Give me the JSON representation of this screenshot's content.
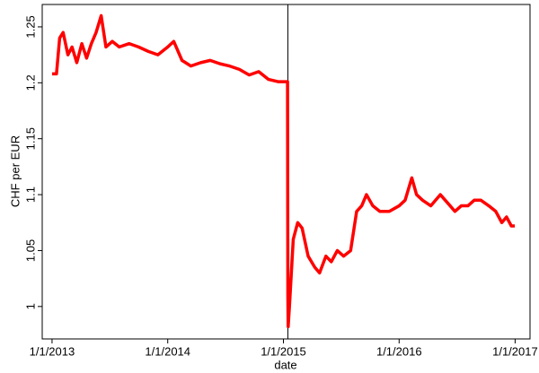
{
  "chart_data": {
    "type": "line",
    "y_label": "CHF per EUR",
    "x_label": "date",
    "x": [
      "2013-01-01",
      "2013-01-15",
      "2013-01-25",
      "2013-02-05",
      "2013-02-20",
      "2013-03-05",
      "2013-03-20",
      "2013-04-05",
      "2013-04-20",
      "2013-05-05",
      "2013-05-20",
      "2013-06-05",
      "2013-06-20",
      "2013-07-10",
      "2013-08-01",
      "2013-09-01",
      "2013-10-01",
      "2013-11-01",
      "2013-12-01",
      "2014-01-01",
      "2014-01-20",
      "2014-02-15",
      "2014-03-15",
      "2014-04-15",
      "2014-05-15",
      "2014-06-15",
      "2014-07-15",
      "2014-08-15",
      "2014-09-15",
      "2014-10-15",
      "2014-11-15",
      "2014-12-15",
      "2015-01-14",
      "2015-01-15",
      "2015-01-16",
      "2015-01-20",
      "2015-02-01",
      "2015-02-15",
      "2015-03-01",
      "2015-03-20",
      "2015-04-10",
      "2015-04-25",
      "2015-05-15",
      "2015-06-01",
      "2015-06-20",
      "2015-07-10",
      "2015-08-01",
      "2015-08-20",
      "2015-09-05",
      "2015-09-20",
      "2015-10-10",
      "2015-11-01",
      "2015-12-01",
      "2016-01-01",
      "2016-01-20",
      "2016-02-10",
      "2016-02-25",
      "2016-03-15",
      "2016-04-10",
      "2016-05-10",
      "2016-06-10",
      "2016-06-25",
      "2016-07-15",
      "2016-08-05",
      "2016-08-25",
      "2016-09-15",
      "2016-10-10",
      "2016-11-01",
      "2016-11-20",
      "2016-12-05",
      "2016-12-20",
      "2016-12-31"
    ],
    "series": [
      {
        "color": "#ff0000",
        "values": [
          1.208,
          1.208,
          1.24,
          1.245,
          1.225,
          1.232,
          1.218,
          1.235,
          1.222,
          1.235,
          1.245,
          1.26,
          1.232,
          1.237,
          1.232,
          1.235,
          1.232,
          1.228,
          1.225,
          1.232,
          1.237,
          1.22,
          1.215,
          1.218,
          1.22,
          1.217,
          1.215,
          1.212,
          1.207,
          1.21,
          1.203,
          1.201,
          1.201,
          1.01,
          0.982,
          1.0,
          1.06,
          1.075,
          1.07,
          1.045,
          1.035,
          1.03,
          1.045,
          1.04,
          1.05,
          1.045,
          1.05,
          1.085,
          1.09,
          1.1,
          1.09,
          1.085,
          1.085,
          1.09,
          1.095,
          1.115,
          1.1,
          1.095,
          1.09,
          1.1,
          1.09,
          1.085,
          1.09,
          1.09,
          1.095,
          1.095,
          1.09,
          1.085,
          1.075,
          1.08,
          1.072,
          1.072
        ]
      }
    ],
    "vline": "2015-01-15",
    "xlim": [
      "2012-12-01",
      "2017-02-17"
    ],
    "xticks": [
      {
        "value": "2013-01-01",
        "label": "1/1/2013"
      },
      {
        "value": "2014-01-01",
        "label": "1/1/2014"
      },
      {
        "value": "2015-01-01",
        "label": "1/1/2015"
      },
      {
        "value": "2016-01-01",
        "label": "1/1/2016"
      },
      {
        "value": "2017-01-01",
        "label": "1/1/2017"
      }
    ],
    "ylim": [
      0.971,
      1.27
    ],
    "yticks": [
      1,
      1.05,
      1.1,
      1.15,
      1.2,
      1.25
    ]
  }
}
